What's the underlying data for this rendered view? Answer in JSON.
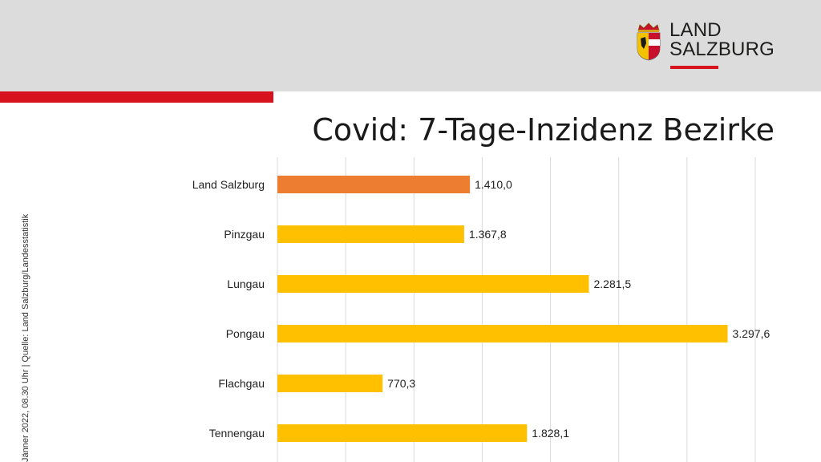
{
  "brand": {
    "logo_line1": "LAND",
    "logo_line2": "SALZBURG",
    "red": "#d7141e",
    "header_gray": "#dcdcdc"
  },
  "side_note": "Jänner 2022, 08.30 Uhr | Quelle: Land Salzburg/Landesstatistik",
  "chart_data": {
    "type": "bar",
    "orientation": "horizontal",
    "title": "Covid: 7-Tage-Inzidenz Bezirke",
    "categories": [
      "Land Salzburg",
      "Pinzgau",
      "Lungau",
      "Pongau",
      "Flachgau",
      "Tennengau"
    ],
    "values": [
      1410.0,
      1367.8,
      2281.5,
      3297.6,
      770.3,
      1828.1
    ],
    "value_labels": [
      "1.410,0",
      "1.367,8",
      "2.281,5",
      "3.297,6",
      "770,3",
      "1.828,1"
    ],
    "bar_colors": [
      "#ed7d31",
      "#ffc000",
      "#ffc000",
      "#ffc000",
      "#ffc000",
      "#ffc000"
    ],
    "xlim": [
      0,
      3500
    ],
    "grid": true,
    "xlabel": "",
    "ylabel": ""
  }
}
